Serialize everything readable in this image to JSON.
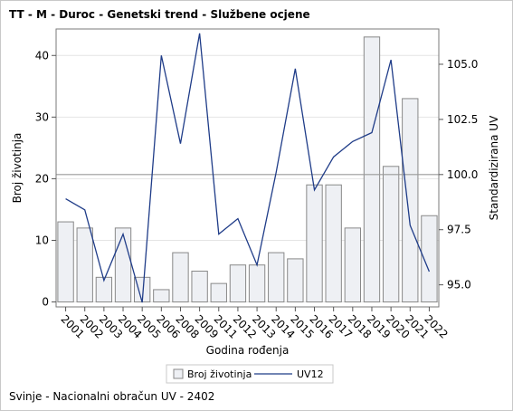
{
  "title": "TT - M - Duroc - Genetski trend - Službene ocjene",
  "footnote": "Svinje - Nacionalni obračun UV - 2402",
  "chart_data": {
    "type": "bar",
    "categories": [
      "2001",
      "2002",
      "2003",
      "2004",
      "2005",
      "2006",
      "2008",
      "2009",
      "2011",
      "2012",
      "2013",
      "2014",
      "2015",
      "2016",
      "2017",
      "2018",
      "2019",
      "2020",
      "2021",
      "2022"
    ],
    "series": [
      {
        "name": "Broj životinja",
        "type": "bar",
        "axis": "left",
        "color": "#eef0f4",
        "stroke": "#888888",
        "values": [
          13,
          12,
          4,
          12,
          4,
          2,
          8,
          5,
          3,
          6,
          6,
          8,
          7,
          19,
          19,
          12,
          43,
          22,
          33,
          14
        ]
      },
      {
        "name": "UV12",
        "type": "line",
        "axis": "right",
        "color": "#1f3c88",
        "values": [
          98.9,
          98.4,
          95.2,
          97.3,
          94.2,
          105.4,
          101.4,
          106.4,
          97.3,
          98.0,
          95.9,
          100.1,
          104.8,
          99.3,
          100.8,
          101.5,
          101.9,
          105.2,
          97.7,
          95.6
        ]
      }
    ],
    "xlabel": "Godina rođenja",
    "ylabel": "Broj životinja",
    "y2label": "Standardizirana UV",
    "ylim": [
      -0.8,
      44.3
    ],
    "y2lim": [
      94.0,
      106.6
    ],
    "yticks": [
      0,
      10,
      20,
      30,
      40
    ],
    "y2ticks": [
      "95.0",
      "97.5",
      "100.0",
      "102.5",
      "105.0"
    ],
    "reference_line": 100.0,
    "grid": true,
    "legend_position": "bottom"
  }
}
